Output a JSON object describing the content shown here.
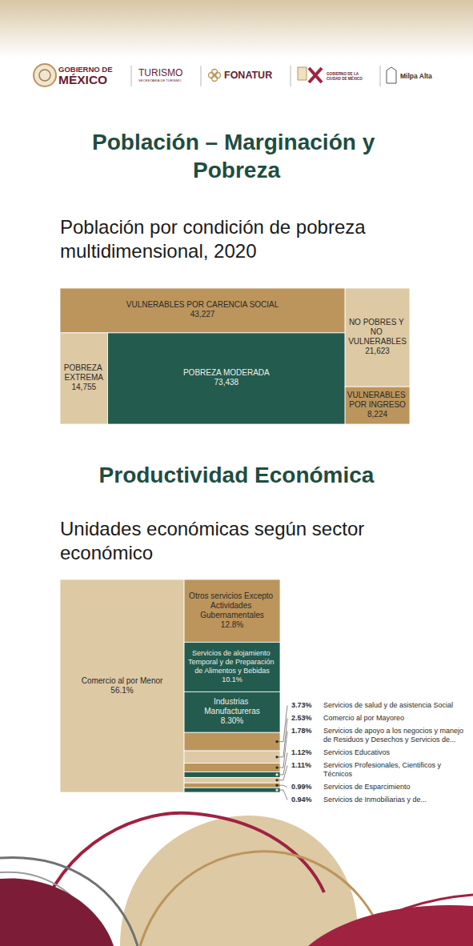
{
  "header": {
    "logos": [
      {
        "lines": [
          "GOBIERNO DE",
          "MÉXICO"
        ]
      },
      {
        "lines": [
          "TURISMO",
          "SECRETARÍA DE TURISMO"
        ]
      },
      {
        "lines": [
          "FONATUR"
        ]
      },
      {
        "lines": [
          "GOBIERNO DE LA",
          "CIUDAD DE MÉXICO"
        ]
      },
      {
        "lines": [
          "Milpa Alta"
        ]
      }
    ]
  },
  "sections": [
    "Población – Marginación y Pobreza",
    "Productividad Económica"
  ],
  "chart_data": [
    {
      "type": "treemap",
      "title": "Población por condición de pobreza multidimensional, 2020",
      "categories": [
        "VULNERABLES POR CARENCIA SOCIAL",
        "NO POBRES Y NO VULNERABLES",
        "POBREZA MODERADA",
        "POBREZA EXTREMA",
        "VULNERABLES POR INGRESO"
      ],
      "values": [
        43227,
        21623,
        73438,
        14755,
        8224
      ],
      "value_labels": [
        "43,227",
        "21,623",
        "73,438",
        "14,755",
        "8,224"
      ],
      "colors": [
        "#bc955c",
        "#ddc9a3",
        "#235b4e",
        "#ddc9a3",
        "#bc955c"
      ],
      "data_labels": true
    },
    {
      "type": "treemap",
      "title": "Unidades económicas según sector económico",
      "categories": [
        "Comercio al por Menor",
        "Otros servicios Excepto Actividades Gubernamentales",
        "Servicios de alojamiento Temporal y de Preparación de Alimentos y Bebidas",
        "Industrias Manufactureras",
        "Comercio al por Mayoreo",
        "Servicios de apoyo a los negocios y manejo de Residuos y Desechos y Servicios de...",
        "Servicios de salud y de asistencia Social",
        "Servicios Educativos",
        "Servicios Profesionales, Cientificos y Técnicos",
        "Servicios de Esparcimiento",
        "Servicios de Inmobiliarias y de..."
      ],
      "values": [
        56.1,
        12.8,
        10.1,
        8.3,
        2.53,
        1.78,
        3.73,
        1.12,
        1.11,
        0.99,
        0.94
      ],
      "value_labels": [
        "56.1%",
        "12.8%",
        "10.1%",
        "8.30%",
        "2.53%",
        "1.78%",
        "3.73%",
        "1.12%",
        "1.11%",
        "0.99%",
        "0.94%"
      ],
      "colors": [
        "#ddc9a3",
        "#bc955c",
        "#235b4e",
        "#235b4e",
        "#ddc9a3",
        "#bc955c",
        "#bc955c",
        "#235b4e",
        "#ddc9a3",
        "#bc955c",
        "#235b4e"
      ],
      "data_labels": true
    }
  ]
}
